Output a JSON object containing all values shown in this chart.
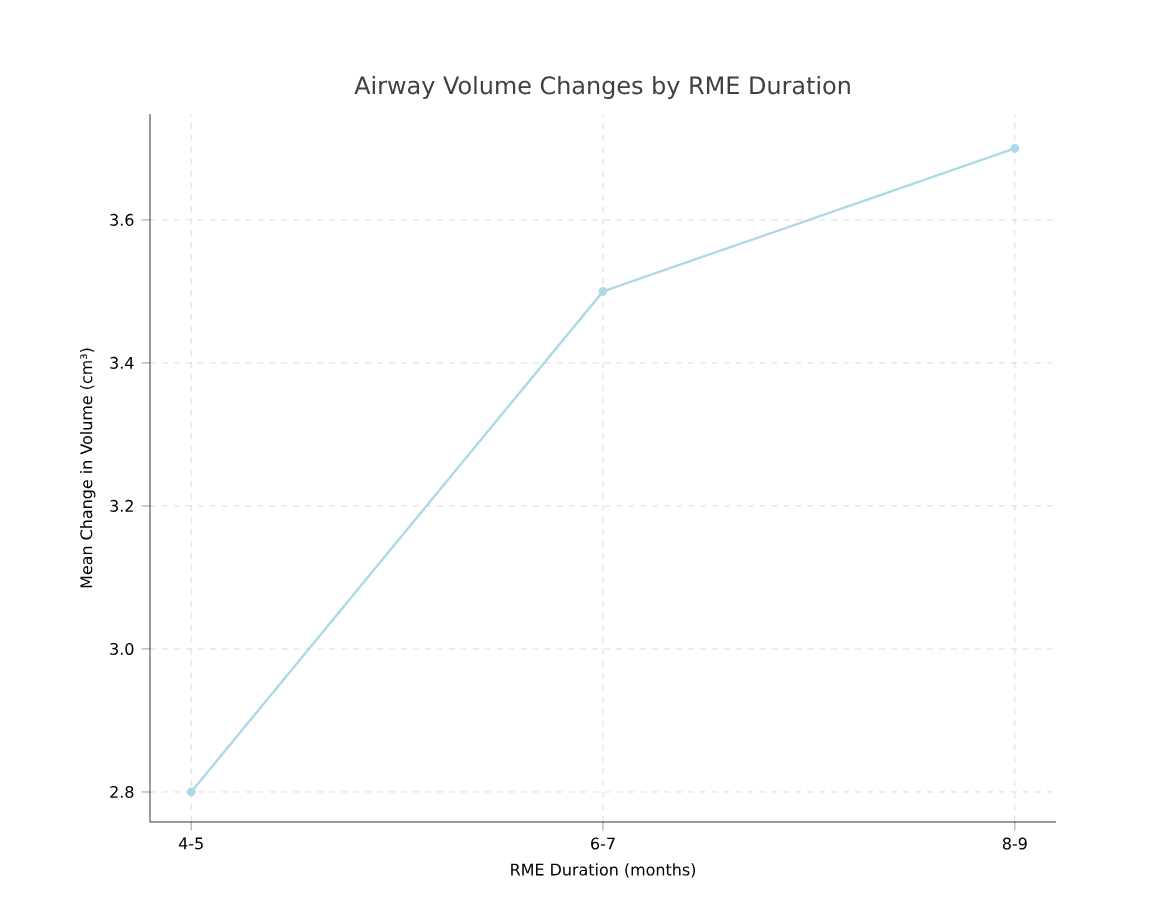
{
  "chart_data": {
    "type": "line",
    "title": "Airway Volume Changes by RME Duration",
    "xlabel": "RME Duration (months)",
    "ylabel": "Mean Change in Volume (cm³)",
    "categories": [
      "4-5",
      "6-7",
      "8-9"
    ],
    "series": [
      {
        "color": "#add8e6",
        "values": [
          2.8,
          3.5,
          3.7
        ]
      }
    ],
    "ylim": [
      2.758,
      3.748
    ],
    "yticks": [
      2.8,
      {
        "value": 3.0,
        "label": "3.0"
      },
      3.2,
      3.4,
      3.6
    ],
    "grid": true,
    "marker": "circle",
    "line_style": "solid"
  }
}
